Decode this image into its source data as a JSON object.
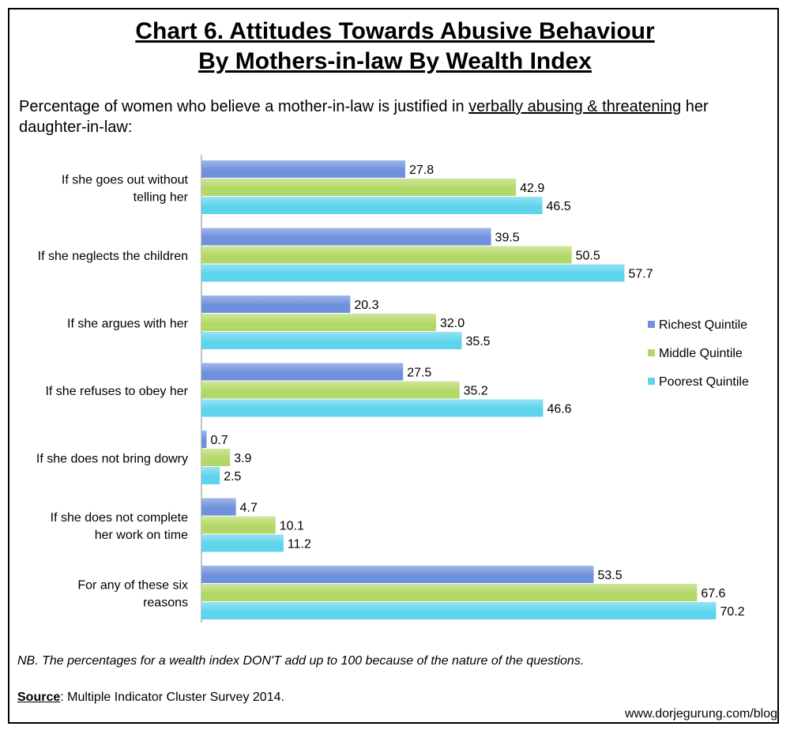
{
  "title_line1": "Chart 6. Attitudes Towards Abusive Behaviour",
  "title_line2": "By Mothers-in-law By Wealth Index",
  "subtitle_prefix": "Percentage of women who believe a mother-in-law is justified in ",
  "subtitle_emphasis": "verbally abusing & threatening",
  "subtitle_suffix": " her daughter-in-law:",
  "note": "NB. The percentages for a wealth index DON'T add up to 100 because of the nature of the questions.",
  "source_label": "Source",
  "source_text": ": Multiple Indicator Cluster Survey 2014.",
  "website": "www.dorjegurung.com/blog",
  "chart_data": {
    "type": "bar",
    "orientation": "horizontal",
    "categories": [
      [
        "If she goes out without",
        "telling her"
      ],
      [
        "If she neglects the children"
      ],
      [
        "If she argues with her"
      ],
      [
        "If she refuses to obey her"
      ],
      [
        "If she does not bring dowry"
      ],
      [
        "If she does not complete",
        "her work on time"
      ],
      [
        "For any of these six",
        "reasons"
      ]
    ],
    "series": [
      {
        "name": "Richest Quintile",
        "color": "#6f90dc",
        "values": [
          27.8,
          39.5,
          20.3,
          27.5,
          0.7,
          4.7,
          53.5
        ]
      },
      {
        "name": "Middle Quintile",
        "color": "#b4d867",
        "values": [
          42.9,
          50.5,
          32.0,
          35.2,
          3.9,
          10.1,
          67.6
        ]
      },
      {
        "name": "Poorest Quintile",
        "color": "#5ed4ec",
        "values": [
          46.5,
          57.7,
          35.5,
          46.6,
          2.5,
          11.2,
          70.2
        ]
      }
    ],
    "value_format": "one-decimal",
    "legend_position": "right",
    "grid": false
  }
}
